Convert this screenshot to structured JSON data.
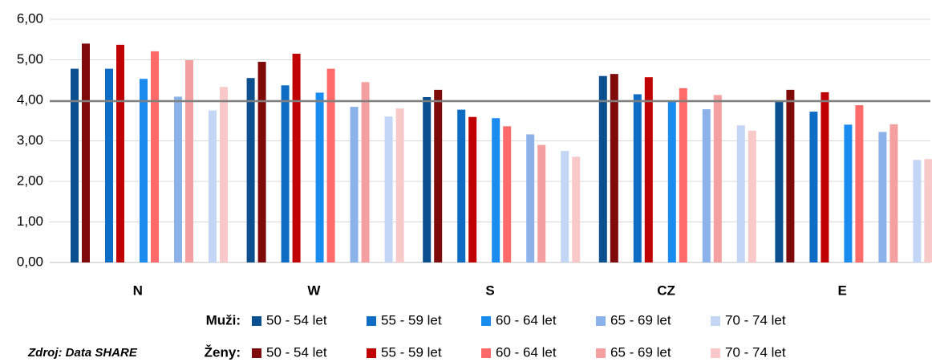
{
  "chart_data": {
    "type": "bar",
    "categories": [
      "N",
      "W",
      "S",
      "CZ",
      "E"
    ],
    "ylim": [
      0,
      6
    ],
    "yticks": [
      {
        "value": 0,
        "label": "0,00"
      },
      {
        "value": 1,
        "label": "1,00"
      },
      {
        "value": 2,
        "label": "2,00"
      },
      {
        "value": 3,
        "label": "3,00"
      },
      {
        "value": 4,
        "label": "4,00"
      },
      {
        "value": 5,
        "label": "5,00"
      },
      {
        "value": 6,
        "label": "6,00"
      }
    ],
    "grid": true,
    "reference_line": 3.98,
    "legend_groups": [
      "Muži:",
      "Ženy:"
    ],
    "series": [
      {
        "name": "50 - 54 let",
        "color": "#0b4f8f",
        "values": [
          4.78,
          4.55,
          4.08,
          4.6,
          3.97
        ]
      },
      {
        "name": "55 - 59 let",
        "color": "#0e6cc4",
        "values": [
          4.78,
          4.37,
          3.77,
          4.15,
          3.72
        ]
      },
      {
        "name": "60 - 64 let",
        "color": "#1a8cf0",
        "values": [
          4.53,
          4.19,
          3.56,
          4.0,
          3.4
        ]
      },
      {
        "name": "65 - 69 let",
        "color": "#8cb2ea",
        "values": [
          4.09,
          3.84,
          3.16,
          3.78,
          3.22
        ]
      },
      {
        "name": "70 - 74 let",
        "color": "#c3d6f5",
        "values": [
          3.75,
          3.6,
          2.75,
          3.38,
          2.53
        ]
      },
      {
        "name": "50 - 54 let",
        "color": "#7f0a0a",
        "values": [
          5.4,
          4.95,
          4.26,
          4.65,
          4.26
        ]
      },
      {
        "name": "55 - 59 let",
        "color": "#c00000",
        "values": [
          5.37,
          5.15,
          3.59,
          4.57,
          4.2
        ]
      },
      {
        "name": "60 - 64 let",
        "color": "#ff6b6b",
        "values": [
          5.21,
          4.78,
          3.36,
          4.3,
          3.88
        ]
      },
      {
        "name": "65 - 69 let",
        "color": "#f4a0a0",
        "values": [
          4.99,
          4.45,
          2.9,
          4.13,
          3.41
        ]
      },
      {
        "name": "70 - 74 let",
        "color": "#f9c9c9",
        "values": [
          4.33,
          3.8,
          2.61,
          3.25,
          2.55
        ]
      }
    ],
    "source": "Zdroj: Data SHARE"
  }
}
